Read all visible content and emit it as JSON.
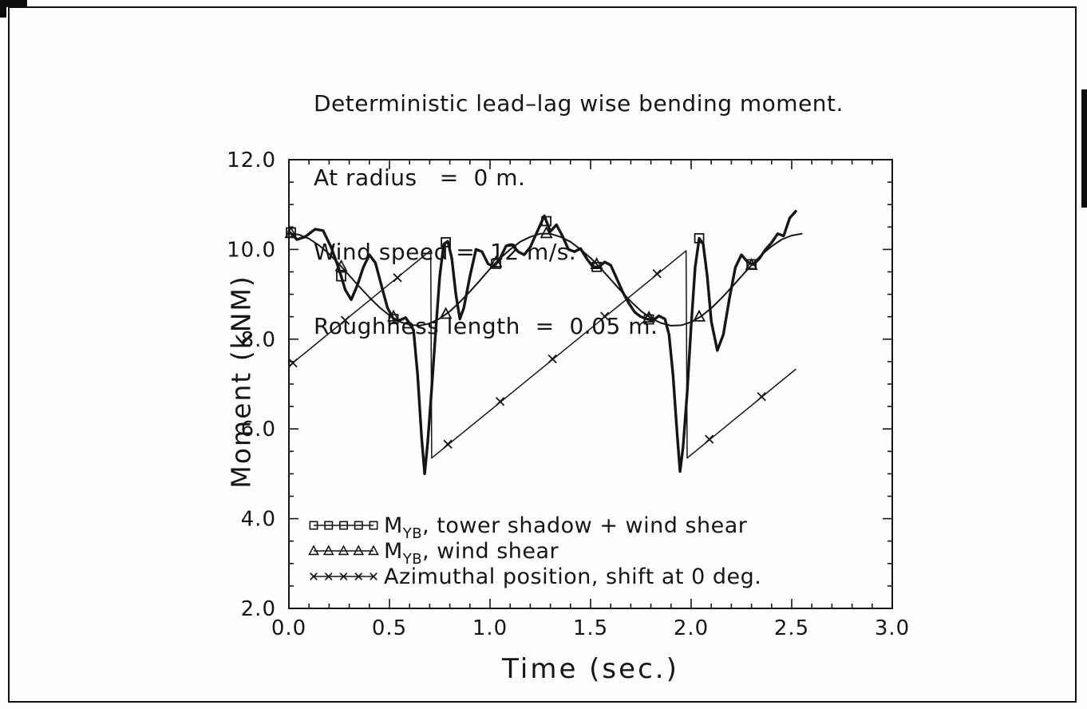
{
  "page": {
    "background": "#fefefe",
    "ink": "#151515"
  },
  "chart_data": {
    "type": "line",
    "title_lines": [
      "Deterministic lead–lag wise bending moment.",
      "At radius   =  0 m.",
      "Wind speed =  12 m/s.",
      "Roughness length  =  0.05 m."
    ],
    "xlabel": "Time  (sec.)",
    "ylabel": "Moment  (kNM)",
    "xlim": [
      0.0,
      3.0
    ],
    "ylim": [
      2.0,
      12.0
    ],
    "xticks": {
      "values": [
        0,
        0.5,
        1.0,
        1.5,
        2.0,
        2.5,
        3.0
      ],
      "labels": [
        "0.0",
        "0.5",
        "1.0",
        "1.5",
        "2.0",
        "2.5",
        "3.0"
      ]
    },
    "yticks": {
      "values": [
        2,
        4,
        6,
        8,
        10,
        12
      ],
      "labels": [
        "2.0",
        "4.0",
        "6.0",
        "8.0",
        "10.0",
        "12.0"
      ]
    },
    "x_minor_step": 0.1,
    "y_minor_step": 0.5,
    "grid": false,
    "legend_position": "inside-bottom-left",
    "series": [
      {
        "id": "myb-tower-shadow-wind-shear",
        "name": "MYB, tower shadow + wind shear",
        "legend": {
          "prefix": "M",
          "subscript": "YB",
          "text": ", tower shadow + wind shear"
        },
        "marker": "square",
        "line_width": 3.4,
        "points": [
          [
            0.0,
            10.4
          ],
          [
            0.04,
            10.22
          ],
          [
            0.08,
            10.28
          ],
          [
            0.13,
            10.45
          ],
          [
            0.17,
            10.42
          ],
          [
            0.21,
            10.05
          ],
          [
            0.25,
            9.55
          ],
          [
            0.28,
            9.1
          ],
          [
            0.31,
            8.88
          ],
          [
            0.34,
            9.2
          ],
          [
            0.37,
            9.6
          ],
          [
            0.4,
            9.88
          ],
          [
            0.43,
            9.7
          ],
          [
            0.46,
            9.2
          ],
          [
            0.49,
            8.7
          ],
          [
            0.52,
            8.45
          ],
          [
            0.55,
            8.42
          ],
          [
            0.58,
            8.48
          ],
          [
            0.6,
            8.35
          ],
          [
            0.62,
            8.2
          ],
          [
            0.64,
            7.2
          ],
          [
            0.66,
            5.8
          ],
          [
            0.675,
            5.0
          ],
          [
            0.69,
            5.7
          ],
          [
            0.71,
            6.9
          ],
          [
            0.73,
            8.2
          ],
          [
            0.75,
            9.4
          ],
          [
            0.77,
            10.12
          ],
          [
            0.79,
            10.18
          ],
          [
            0.81,
            9.8
          ],
          [
            0.83,
            9.0
          ],
          [
            0.85,
            8.45
          ],
          [
            0.87,
            8.7
          ],
          [
            0.9,
            9.4
          ],
          [
            0.93,
            10.0
          ],
          [
            0.96,
            9.95
          ],
          [
            0.99,
            9.68
          ],
          [
            1.02,
            9.62
          ],
          [
            1.05,
            9.8
          ],
          [
            1.08,
            10.08
          ],
          [
            1.11,
            10.1
          ],
          [
            1.14,
            9.95
          ],
          [
            1.17,
            9.88
          ],
          [
            1.2,
            10.05
          ],
          [
            1.24,
            10.45
          ],
          [
            1.27,
            10.75
          ],
          [
            1.3,
            10.4
          ],
          [
            1.33,
            10.55
          ],
          [
            1.36,
            10.3
          ],
          [
            1.39,
            10.0
          ],
          [
            1.42,
            9.95
          ],
          [
            1.45,
            10.02
          ],
          [
            1.48,
            9.8
          ],
          [
            1.51,
            9.62
          ],
          [
            1.54,
            9.6
          ],
          [
            1.57,
            9.72
          ],
          [
            1.6,
            9.65
          ],
          [
            1.63,
            9.35
          ],
          [
            1.66,
            9.05
          ],
          [
            1.69,
            8.8
          ],
          [
            1.72,
            8.6
          ],
          [
            1.75,
            8.5
          ],
          [
            1.78,
            8.45
          ],
          [
            1.81,
            8.42
          ],
          [
            1.84,
            8.52
          ],
          [
            1.87,
            8.45
          ],
          [
            1.89,
            8.1
          ],
          [
            1.91,
            7.2
          ],
          [
            1.93,
            5.9
          ],
          [
            1.945,
            5.05
          ],
          [
            1.96,
            5.6
          ],
          [
            1.98,
            6.8
          ],
          [
            2.0,
            8.3
          ],
          [
            2.02,
            9.6
          ],
          [
            2.04,
            10.25
          ],
          [
            2.06,
            10.12
          ],
          [
            2.08,
            9.4
          ],
          [
            2.1,
            8.4
          ],
          [
            2.13,
            7.75
          ],
          [
            2.16,
            8.1
          ],
          [
            2.19,
            8.9
          ],
          [
            2.22,
            9.6
          ],
          [
            2.25,
            9.88
          ],
          [
            2.28,
            9.72
          ],
          [
            2.31,
            9.66
          ],
          [
            2.34,
            9.8
          ],
          [
            2.37,
            10.0
          ],
          [
            2.4,
            10.15
          ],
          [
            2.43,
            10.35
          ],
          [
            2.46,
            10.3
          ],
          [
            2.49,
            10.7
          ],
          [
            2.52,
            10.85
          ]
        ],
        "marker_points": [
          [
            0.01,
            10.38
          ],
          [
            0.26,
            9.4
          ],
          [
            0.52,
            8.45
          ],
          [
            0.78,
            10.16
          ],
          [
            1.03,
            9.68
          ],
          [
            1.28,
            10.63
          ],
          [
            1.53,
            9.61
          ],
          [
            1.79,
            8.44
          ],
          [
            2.04,
            10.25
          ],
          [
            2.3,
            9.67
          ]
        ]
      },
      {
        "id": "myb-wind-shear",
        "name": "MYB, wind shear",
        "legend": {
          "prefix": "M",
          "subscript": "YB",
          "text": ", wind shear"
        },
        "marker": "triangle",
        "line_width": 2.0,
        "points": [
          [
            0.0,
            10.36
          ],
          [
            0.05,
            10.33
          ],
          [
            0.1,
            10.24
          ],
          [
            0.15,
            10.09
          ],
          [
            0.2,
            9.9
          ],
          [
            0.25,
            9.67
          ],
          [
            0.3,
            9.42
          ],
          [
            0.35,
            9.17
          ],
          [
            0.4,
            8.93
          ],
          [
            0.45,
            8.71
          ],
          [
            0.5,
            8.53
          ],
          [
            0.55,
            8.39
          ],
          [
            0.6,
            8.32
          ],
          [
            0.65,
            8.3
          ],
          [
            0.7,
            8.35
          ],
          [
            0.75,
            8.46
          ],
          [
            0.8,
            8.62
          ],
          [
            0.85,
            8.83
          ],
          [
            0.9,
            9.06
          ],
          [
            0.95,
            9.31
          ],
          [
            1.0,
            9.57
          ],
          [
            1.05,
            9.8
          ],
          [
            1.1,
            10.0
          ],
          [
            1.15,
            10.17
          ],
          [
            1.2,
            10.28
          ],
          [
            1.25,
            10.35
          ],
          [
            1.3,
            10.35
          ],
          [
            1.35,
            10.28
          ],
          [
            1.4,
            10.17
          ],
          [
            1.45,
            10.0
          ],
          [
            1.5,
            9.81
          ],
          [
            1.55,
            9.58
          ],
          [
            1.6,
            9.33
          ],
          [
            1.65,
            9.08
          ],
          [
            1.7,
            8.84
          ],
          [
            1.75,
            8.63
          ],
          [
            1.8,
            8.47
          ],
          [
            1.85,
            8.36
          ],
          [
            1.9,
            8.3
          ],
          [
            1.95,
            8.31
          ],
          [
            2.0,
            8.38
          ],
          [
            2.05,
            8.51
          ],
          [
            2.1,
            8.69
          ],
          [
            2.15,
            8.91
          ],
          [
            2.2,
            9.15
          ],
          [
            2.25,
            9.4
          ],
          [
            2.3,
            9.65
          ],
          [
            2.35,
            9.88
          ],
          [
            2.4,
            10.07
          ],
          [
            2.45,
            10.22
          ],
          [
            2.5,
            10.31
          ],
          [
            2.55,
            10.35
          ]
        ],
        "marker_points": [
          [
            0.01,
            10.36
          ],
          [
            0.26,
            9.62
          ],
          [
            0.52,
            8.5
          ],
          [
            0.78,
            8.56
          ],
          [
            1.03,
            9.71
          ],
          [
            1.28,
            10.36
          ],
          [
            1.53,
            9.67
          ],
          [
            1.79,
            8.48
          ],
          [
            2.04,
            8.5
          ],
          [
            2.3,
            9.65
          ]
        ]
      },
      {
        "id": "azimuthal-position",
        "name": "Azimuthal position, shift at 0 deg.",
        "legend": {
          "prefix": "",
          "subscript": "",
          "text": "Azimuthal position, shift at 0 deg."
        },
        "marker": "x-cross",
        "line_width": 1.5,
        "points": [
          [
            0.0,
            7.4
          ],
          [
            0.705,
            9.98
          ],
          [
            0.71,
            5.35
          ],
          [
            1.975,
            9.97
          ],
          [
            1.98,
            5.35
          ],
          [
            2.52,
            7.33
          ]
        ],
        "marker_points": [
          [
            0.02,
            7.47
          ],
          [
            0.28,
            8.42
          ],
          [
            0.54,
            9.37
          ],
          [
            0.79,
            5.66
          ],
          [
            1.05,
            6.61
          ],
          [
            1.31,
            7.56
          ],
          [
            1.57,
            8.51
          ],
          [
            1.83,
            9.46
          ],
          [
            2.09,
            5.77
          ],
          [
            2.35,
            6.72
          ]
        ]
      }
    ]
  }
}
